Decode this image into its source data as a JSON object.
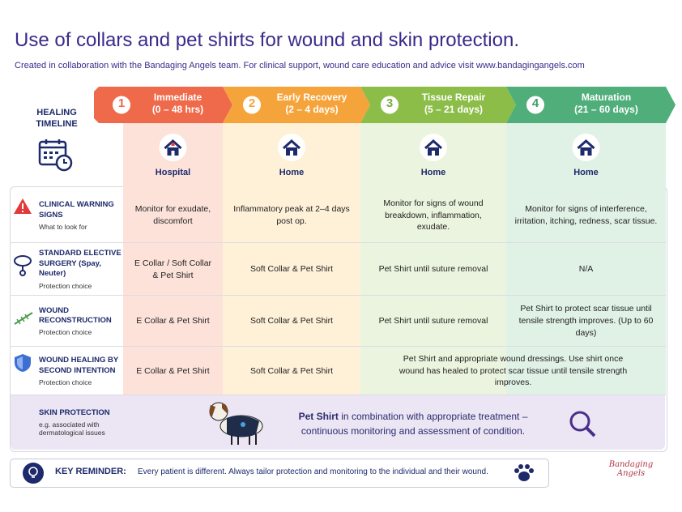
{
  "header": {
    "title": "Use of collars and pet shirts for wound and skin protection.",
    "subtitle": "Created in collaboration with the Bandaging Angels team. For clinical support, wound care education and advice visit www.bandagingangels.com"
  },
  "timeline_label": "HEALING TIMELINE",
  "stages": [
    {
      "number": 1,
      "name": "Immediate",
      "range": "(0 – 48 hrs)",
      "setting": "Hospital"
    },
    {
      "number": 2,
      "name": "Early Recovery",
      "range": "(2 – 4 days)",
      "setting": "Home"
    },
    {
      "number": 3,
      "name": "Tissue Repair",
      "range": "(5 – 21 days)",
      "setting": "Home"
    },
    {
      "number": 4,
      "name": "Maturation",
      "range": "(21 – 60 days)",
      "setting": "Home"
    }
  ],
  "rows": [
    {
      "title": "CLINICAL WARNING SIGNS",
      "subtitle": "What to look for",
      "cells": [
        "Monitor for exudate, discomfort",
        "Inflammatory peak at 2–4 days post op.",
        "Monitor for signs of wound breakdown, inflammation, exudate.",
        "Monitor for signs of interference, irritation, itching, redness, scar tissue."
      ]
    },
    {
      "title": "STANDARD ELECTIVE SURGERY (Spay, Neuter)",
      "subtitle": "Protection choice",
      "cells": [
        "E Collar / Soft Collar & Pet Shirt",
        "Soft Collar & Pet Shirt",
        "Pet Shirt until suture removal",
        "N/A"
      ]
    },
    {
      "title": "WOUND RECONSTRUCTION",
      "subtitle": "Protection choice",
      "cells": [
        "E Collar & Pet Shirt",
        "Soft Collar & Pet Shirt",
        "Pet Shirt until suture removal",
        "Pet Shirt to protect scar tissue until tensile strength improves. (Up to 60 days)"
      ]
    },
    {
      "title": "WOUND HEALING BY SECOND INTENTION",
      "subtitle": "Protection choice",
      "cells": [
        "E Collar & Pet Shirt",
        "Soft Collar & Pet Shirt",
        "Pet Shirt and appropriate wound dressings. Use shirt once wound has healed to protect scar tissue until tensile strength improves."
      ]
    }
  ],
  "skin_protection": {
    "title": "SKIN PROTECTION",
    "subtitle": "e.g. associated with dermatological issues",
    "highlight": "Pet Shirt",
    "text": "in combination with appropriate treatment – continuous monitoring and assessment of condition."
  },
  "footer": {
    "label": "KEY REMINDER:",
    "text": "Every patient is different. Always tailor protection and monitoring to the individual and their wound.",
    "logo": "Bandaging Angels"
  }
}
